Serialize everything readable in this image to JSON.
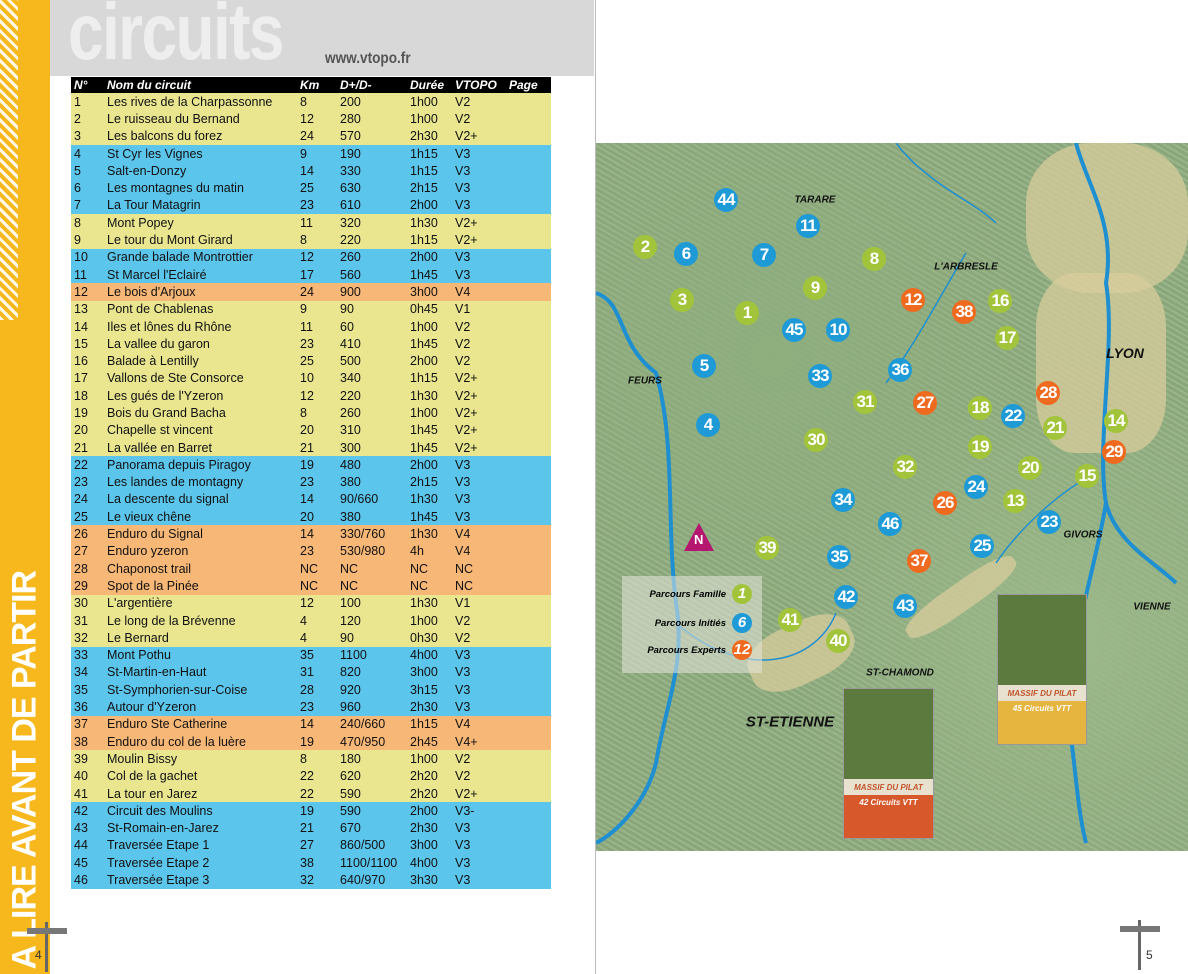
{
  "left_page": {
    "side_title": "A LIRE AVANT DE PARTIR",
    "page_number": "4",
    "title": "circuits",
    "url": "www.vtopo.fr"
  },
  "right_page": {
    "page_number": "5"
  },
  "colors": {
    "famille": "#a2c43a",
    "inities": "#1e9ad6",
    "experts": "#ee6a1f",
    "row_famille": "#e9e68f",
    "row_inities": "#5bc5ec",
    "row_experts": "#f7b877",
    "sidebar": "#f6b81c"
  },
  "table": {
    "headers": [
      "N°",
      "Nom du circuit",
      "Km",
      "D+/D-",
      "Durée",
      "VTOPO",
      "Page"
    ],
    "rows": [
      {
        "n": "1",
        "name": "Les rives de la Charpassonne",
        "km": "8",
        "dplus": "200",
        "duree": "1h00",
        "vtopo": "V2",
        "page": "",
        "cat": "y"
      },
      {
        "n": "2",
        "name": "Le ruisseau du Bernand",
        "km": "12",
        "dplus": "280",
        "duree": "1h00",
        "vtopo": "V2",
        "page": "",
        "cat": "y"
      },
      {
        "n": "3",
        "name": "Les balcons du forez",
        "km": "24",
        "dplus": "570",
        "duree": "2h30",
        "vtopo": "V2+",
        "page": "",
        "cat": "y"
      },
      {
        "n": "4",
        "name": "St Cyr les Vignes",
        "km": "9",
        "dplus": "190",
        "duree": "1h15",
        "vtopo": "V3",
        "page": "",
        "cat": "b"
      },
      {
        "n": "5",
        "name": "Salt-en-Donzy",
        "km": "14",
        "dplus": "330",
        "duree": "1h15",
        "vtopo": "V3",
        "page": "",
        "cat": "b"
      },
      {
        "n": "6",
        "name": "Les montagnes du matin",
        "km": "25",
        "dplus": "630",
        "duree": "2h15",
        "vtopo": "V3",
        "page": "",
        "cat": "b"
      },
      {
        "n": "7",
        "name": "La Tour Matagrin",
        "km": "23",
        "dplus": "610",
        "duree": "2h00",
        "vtopo": "V3",
        "page": "",
        "cat": "b"
      },
      {
        "n": "8",
        "name": "Mont Popey",
        "km": "11",
        "dplus": "320",
        "duree": "1h30",
        "vtopo": "V2+",
        "page": "",
        "cat": "y"
      },
      {
        "n": "9",
        "name": "Le tour du Mont Girard",
        "km": "8",
        "dplus": "220",
        "duree": "1h15",
        "vtopo": "V2+",
        "page": "",
        "cat": "y"
      },
      {
        "n": "10",
        "name": "Grande balade Montrottier",
        "km": "12",
        "dplus": "260",
        "duree": "2h00",
        "vtopo": "V3",
        "page": "",
        "cat": "b"
      },
      {
        "n": "11",
        "name": "St Marcel l'Eclairé",
        "km": "17",
        "dplus": "560",
        "duree": "1h45",
        "vtopo": "V3",
        "page": "",
        "cat": "b"
      },
      {
        "n": "12",
        "name": "Le bois d'Arjoux",
        "km": "24",
        "dplus": "900",
        "duree": "3h00",
        "vtopo": "V4",
        "page": "",
        "cat": "o"
      },
      {
        "n": "13",
        "name": "Pont de Chablenas",
        "km": "9",
        "dplus": "90",
        "duree": "0h45",
        "vtopo": "V1",
        "page": "",
        "cat": "y"
      },
      {
        "n": "14",
        "name": "Iles et lônes du Rhône",
        "km": "11",
        "dplus": "60",
        "duree": "1h00",
        "vtopo": "V2",
        "page": "",
        "cat": "y"
      },
      {
        "n": "15",
        "name": "La vallee du garon",
        "km": "23",
        "dplus": "410",
        "duree": "1h45",
        "vtopo": "V2",
        "page": "",
        "cat": "y"
      },
      {
        "n": "16",
        "name": "Balade à Lentilly",
        "km": "25",
        "dplus": "500",
        "duree": "2h00",
        "vtopo": "V2",
        "page": "",
        "cat": "y"
      },
      {
        "n": "17",
        "name": "Vallons de Ste Consorce",
        "km": "10",
        "dplus": "340",
        "duree": "1h15",
        "vtopo": "V2+",
        "page": "",
        "cat": "y"
      },
      {
        "n": "18",
        "name": "Les gués de l'Yzeron",
        "km": "12",
        "dplus": "220",
        "duree": "1h30",
        "vtopo": "V2+",
        "page": "",
        "cat": "y"
      },
      {
        "n": "19",
        "name": "Bois du Grand Bacha",
        "km": "8",
        "dplus": "260",
        "duree": "1h00",
        "vtopo": "V2+",
        "page": "",
        "cat": "y"
      },
      {
        "n": "20",
        "name": "Chapelle st vincent",
        "km": "20",
        "dplus": "310",
        "duree": "1h45",
        "vtopo": "V2+",
        "page": "",
        "cat": "y"
      },
      {
        "n": "21",
        "name": "La vallée en Barret",
        "km": "21",
        "dplus": "300",
        "duree": "1h45",
        "vtopo": "V2+",
        "page": "",
        "cat": "y"
      },
      {
        "n": "22",
        "name": "Panorama depuis Piragoy",
        "km": "19",
        "dplus": "480",
        "duree": "2h00",
        "vtopo": "V3",
        "page": "",
        "cat": "b"
      },
      {
        "n": "23",
        "name": "Les landes de montagny",
        "km": "23",
        "dplus": "380",
        "duree": "2h15",
        "vtopo": "V3",
        "page": "",
        "cat": "b"
      },
      {
        "n": "24",
        "name": "La descente du signal",
        "km": "14",
        "dplus": "90/660",
        "duree": "1h30",
        "vtopo": "V3",
        "page": "",
        "cat": "b"
      },
      {
        "n": "25",
        "name": "Le vieux chêne",
        "km": "20",
        "dplus": "380",
        "duree": "1h45",
        "vtopo": "V3",
        "page": "",
        "cat": "b"
      },
      {
        "n": "26",
        "name": "Enduro du Signal",
        "km": "14",
        "dplus": "330/760",
        "duree": "1h30",
        "vtopo": "V4",
        "page": "",
        "cat": "o"
      },
      {
        "n": "27",
        "name": "Enduro yzeron",
        "km": "23",
        "dplus": "530/980",
        "duree": "4h",
        "vtopo": "V4",
        "page": "",
        "cat": "o"
      },
      {
        "n": "28",
        "name": "Chaponost trail",
        "km": "NC",
        "dplus": "NC",
        "duree": "NC",
        "vtopo": "NC",
        "page": "",
        "cat": "o"
      },
      {
        "n": "29",
        "name": "Spot de la Pinée",
        "km": "NC",
        "dplus": "NC",
        "duree": "NC",
        "vtopo": "NC",
        "page": "",
        "cat": "o"
      },
      {
        "n": "30",
        "name": "L'argentière",
        "km": "12",
        "dplus": "100",
        "duree": "1h30",
        "vtopo": "V1",
        "page": "",
        "cat": "y"
      },
      {
        "n": "31",
        "name": "Le long de la Brévenne",
        "km": "4",
        "dplus": "120",
        "duree": "1h00",
        "vtopo": "V2",
        "page": "",
        "cat": "y"
      },
      {
        "n": "32",
        "name": "Le Bernard",
        "km": "4",
        "dplus": "90",
        "duree": "0h30",
        "vtopo": "V2",
        "page": "",
        "cat": "y"
      },
      {
        "n": "33",
        "name": "Mont Pothu",
        "km": "35",
        "dplus": "1100",
        "duree": "4h00",
        "vtopo": "V3",
        "page": "",
        "cat": "b"
      },
      {
        "n": "34",
        "name": "St-Martin-en-Haut",
        "km": "31",
        "dplus": "820",
        "duree": "3h00",
        "vtopo": "V3",
        "page": "",
        "cat": "b"
      },
      {
        "n": "35",
        "name": "St-Symphorien-sur-Coise",
        "km": "28",
        "dplus": "920",
        "duree": "3h15",
        "vtopo": "V3",
        "page": "",
        "cat": "b"
      },
      {
        "n": "36",
        "name": "Autour d'Yzeron",
        "km": "23",
        "dplus": "960",
        "duree": "2h30",
        "vtopo": "V3",
        "page": "",
        "cat": "b"
      },
      {
        "n": "37",
        "name": "Enduro Ste Catherine",
        "km": "14",
        "dplus": "240/660",
        "duree": "1h15",
        "vtopo": "V4",
        "page": "",
        "cat": "o"
      },
      {
        "n": "38",
        "name": "Enduro du col de la luère",
        "km": "19",
        "dplus": "470/950",
        "duree": "2h45",
        "vtopo": "V4+",
        "page": "",
        "cat": "o"
      },
      {
        "n": "39",
        "name": "Moulin Bissy",
        "km": "8",
        "dplus": "180",
        "duree": "1h00",
        "vtopo": "V2",
        "page": "",
        "cat": "y"
      },
      {
        "n": "40",
        "name": "Col de la gachet",
        "km": "22",
        "dplus": "620",
        "duree": "2h20",
        "vtopo": "V2",
        "page": "",
        "cat": "y"
      },
      {
        "n": "41",
        "name": "La tour en Jarez",
        "km": "22",
        "dplus": "590",
        "duree": "2h20",
        "vtopo": "V2+",
        "page": "",
        "cat": "y"
      },
      {
        "n": "42",
        "name": "Circuit des Moulins",
        "km": "19",
        "dplus": "590",
        "duree": "2h00",
        "vtopo": "V3-",
        "page": "",
        "cat": "b"
      },
      {
        "n": "43",
        "name": "St-Romain-en-Jarez",
        "km": "21",
        "dplus": "670",
        "duree": "2h30",
        "vtopo": "V3",
        "page": "",
        "cat": "b"
      },
      {
        "n": "44",
        "name": "Traversée Etape 1",
        "km": "27",
        "dplus": "860/500",
        "duree": "3h00",
        "vtopo": "V3",
        "page": "",
        "cat": "b"
      },
      {
        "n": "45",
        "name": "Traversée Etape 2",
        "km": "38",
        "dplus": "1100/1100",
        "duree": "4h00",
        "vtopo": "V3",
        "page": "",
        "cat": "b"
      },
      {
        "n": "46",
        "name": "Traversée Etape 3",
        "km": "32",
        "dplus": "640/970",
        "duree": "3h30",
        "vtopo": "V3",
        "page": "",
        "cat": "b"
      }
    ]
  },
  "map": {
    "places": [
      "TARARE",
      "L'ARBRESLE",
      "LYON",
      "FEURS",
      "GIVORS",
      "VIENNE",
      "ST-CHAMOND",
      "ST-ETIENNE"
    ],
    "north_label": "N",
    "legend": [
      {
        "label": "Parcours Famille",
        "num": "1",
        "cat": "g"
      },
      {
        "label": "Parcours Initiés",
        "num": "6",
        "cat": "b"
      },
      {
        "label": "Parcours Experts",
        "num": "12",
        "cat": "o"
      }
    ],
    "markers": [
      {
        "n": "44",
        "c": "b"
      },
      {
        "n": "11",
        "c": "b"
      },
      {
        "n": "2",
        "c": "g"
      },
      {
        "n": "6",
        "c": "b"
      },
      {
        "n": "7",
        "c": "b"
      },
      {
        "n": "8",
        "c": "g"
      },
      {
        "n": "9",
        "c": "g"
      },
      {
        "n": "12",
        "c": "o"
      },
      {
        "n": "38",
        "c": "o"
      },
      {
        "n": "16",
        "c": "g"
      },
      {
        "n": "3",
        "c": "g"
      },
      {
        "n": "1",
        "c": "g"
      },
      {
        "n": "45",
        "c": "b"
      },
      {
        "n": "10",
        "c": "b"
      },
      {
        "n": "17",
        "c": "g"
      },
      {
        "n": "5",
        "c": "b"
      },
      {
        "n": "33",
        "c": "b"
      },
      {
        "n": "36",
        "c": "b"
      },
      {
        "n": "31",
        "c": "g"
      },
      {
        "n": "27",
        "c": "o"
      },
      {
        "n": "18",
        "c": "g"
      },
      {
        "n": "22",
        "c": "b"
      },
      {
        "n": "28",
        "c": "o"
      },
      {
        "n": "14",
        "c": "g"
      },
      {
        "n": "21",
        "c": "g"
      },
      {
        "n": "29",
        "c": "o"
      },
      {
        "n": "4",
        "c": "b"
      },
      {
        "n": "30",
        "c": "g"
      },
      {
        "n": "19",
        "c": "g"
      },
      {
        "n": "20",
        "c": "g"
      },
      {
        "n": "15",
        "c": "g"
      },
      {
        "n": "32",
        "c": "g"
      },
      {
        "n": "24",
        "c": "b"
      },
      {
        "n": "13",
        "c": "g"
      },
      {
        "n": "26",
        "c": "o"
      },
      {
        "n": "34",
        "c": "b"
      },
      {
        "n": "46",
        "c": "b"
      },
      {
        "n": "23",
        "c": "b"
      },
      {
        "n": "39",
        "c": "g"
      },
      {
        "n": "35",
        "c": "b"
      },
      {
        "n": "37",
        "c": "o"
      },
      {
        "n": "25",
        "c": "b"
      },
      {
        "n": "42",
        "c": "b"
      },
      {
        "n": "43",
        "c": "b"
      },
      {
        "n": "41",
        "c": "g"
      },
      {
        "n": "40",
        "c": "g"
      }
    ],
    "covers": [
      {
        "title": "MASSIF DU PILAT",
        "subtitle": "42 Circuits VTT"
      },
      {
        "title": "MASSIF DU PILAT",
        "subtitle": "45 Circuits VTT"
      }
    ]
  }
}
